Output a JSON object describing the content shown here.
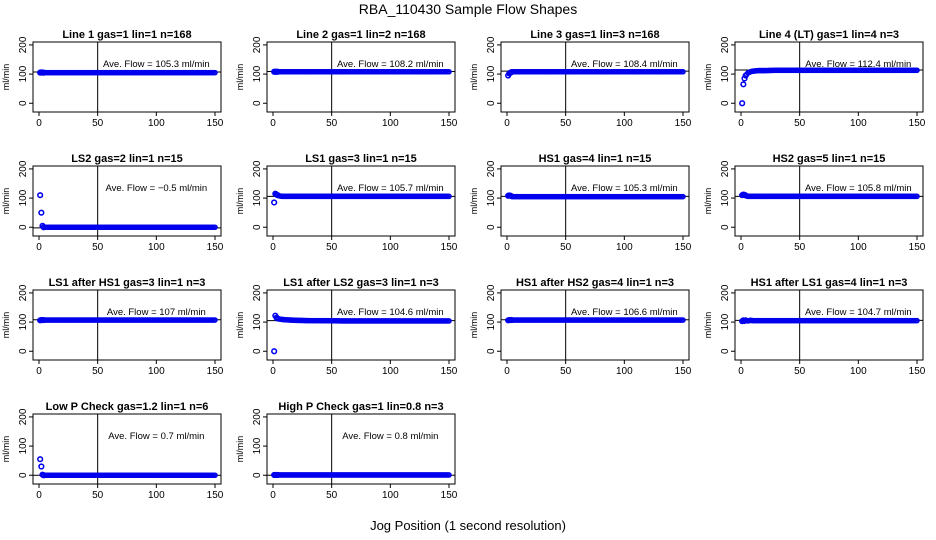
{
  "figure": {
    "title": "RBA_110430  Sample Flow Shapes",
    "xlabel": "Jog Position (1 second resolution)",
    "ylabel": "ml/min",
    "point_color": "#0000ee",
    "xticks": [
      "0",
      "50",
      "100",
      "150"
    ],
    "yticks": [
      "0",
      "100",
      "200"
    ]
  },
  "chart_data": [
    {
      "type": "scatter",
      "title": "Line 1 gas=1 lin=1 n=168",
      "annotation": "Ave. Flow = 105.3  ml/min",
      "xlim": [
        0,
        150
      ],
      "ylim": [
        -30,
        210
      ],
      "xticks": [
        0,
        50,
        100,
        150
      ],
      "yticks": [
        0,
        100,
        200
      ],
      "vline_x": 50,
      "hline_y": 107,
      "x": [
        1,
        2,
        3,
        4,
        5,
        6,
        8,
        10,
        15,
        20,
        30,
        40,
        60,
        80,
        100,
        120,
        140,
        150
      ],
      "y": [
        105,
        106,
        105,
        105,
        105,
        105,
        105,
        105,
        105,
        105,
        105,
        105,
        105,
        105,
        105,
        105,
        105,
        105
      ]
    },
    {
      "type": "scatter",
      "title": "Line 2 gas=1 lin=2 n=168",
      "annotation": "Ave. Flow = 108.2  ml/min",
      "xlim": [
        0,
        150
      ],
      "ylim": [
        -30,
        210
      ],
      "xticks": [
        0,
        50,
        100,
        150
      ],
      "yticks": [
        0,
        100,
        200
      ],
      "vline_x": 50,
      "hline_y": 109,
      "x": [
        1,
        2,
        3,
        4,
        5,
        6,
        8,
        10,
        15,
        20,
        30,
        40,
        60,
        80,
        100,
        120,
        140,
        150
      ],
      "y": [
        108,
        108,
        108,
        108,
        108,
        108,
        108,
        108,
        108,
        108,
        108,
        108,
        108,
        108,
        108,
        108,
        108,
        108
      ]
    },
    {
      "type": "scatter",
      "title": "Line 3 gas=1 lin=3 n=168",
      "annotation": "Ave. Flow = 108.4  ml/min",
      "xlim": [
        0,
        150
      ],
      "ylim": [
        -30,
        210
      ],
      "xticks": [
        0,
        50,
        100,
        150
      ],
      "yticks": [
        0,
        100,
        200
      ],
      "vline_x": 50,
      "hline_y": 110,
      "x": [
        1,
        2,
        3,
        4,
        5,
        6,
        8,
        10,
        15,
        20,
        30,
        40,
        60,
        80,
        100,
        120,
        140,
        150
      ],
      "y": [
        95,
        102,
        105,
        107,
        108,
        108,
        108,
        108,
        108,
        108,
        108,
        108,
        108,
        108,
        108,
        108,
        108,
        108
      ]
    },
    {
      "type": "scatter",
      "title": "Line 4 (LT) gas=1 lin=4 n=3",
      "annotation": "Ave. Flow = 112.4  ml/min",
      "xlim": [
        0,
        150
      ],
      "ylim": [
        -30,
        210
      ],
      "xticks": [
        0,
        50,
        100,
        150
      ],
      "yticks": [
        0,
        100,
        200
      ],
      "vline_x": 50,
      "hline_y": 114,
      "x": [
        1,
        2,
        3,
        4,
        5,
        6,
        8,
        10,
        15,
        20,
        30,
        40,
        60,
        80,
        100,
        120,
        140,
        150
      ],
      "y": [
        0,
        65,
        85,
        95,
        100,
        104,
        108,
        110,
        112,
        112,
        113,
        113,
        113,
        113,
        113,
        113,
        113,
        113
      ]
    },
    {
      "type": "scatter",
      "title": "LS2 gas=2 lin=1 n=15",
      "annotation": "Ave. Flow = −0.5  ml/min",
      "xlim": [
        0,
        150
      ],
      "ylim": [
        -30,
        210
      ],
      "xticks": [
        0,
        50,
        100,
        150
      ],
      "yticks": [
        0,
        100,
        200
      ],
      "vline_x": 50,
      "hline_y": -2,
      "x": [
        1,
        2,
        3,
        4,
        5,
        6,
        8,
        10,
        15,
        20,
        30,
        40,
        60,
        80,
        100,
        120,
        140,
        150
      ],
      "y": [
        110,
        50,
        5,
        0,
        0,
        0,
        0,
        0,
        0,
        0,
        0,
        0,
        0,
        0,
        0,
        0,
        0,
        0
      ]
    },
    {
      "type": "scatter",
      "title": "LS1 gas=3 lin=1 n=15",
      "annotation": "Ave. Flow = 105.7  ml/min",
      "xlim": [
        0,
        150
      ],
      "ylim": [
        -30,
        210
      ],
      "xticks": [
        0,
        50,
        100,
        150
      ],
      "yticks": [
        0,
        100,
        200
      ],
      "vline_x": 50,
      "hline_y": 106,
      "x": [
        1,
        2,
        3,
        4,
        5,
        6,
        8,
        10,
        15,
        20,
        30,
        40,
        60,
        80,
        100,
        120,
        140,
        150
      ],
      "y": [
        85,
        115,
        112,
        110,
        108,
        107,
        106,
        106,
        106,
        106,
        106,
        106,
        106,
        106,
        106,
        106,
        106,
        106
      ]
    },
    {
      "type": "scatter",
      "title": "HS1 gas=4 lin=1 n=15",
      "annotation": "Ave. Flow = 105.3  ml/min",
      "xlim": [
        0,
        150
      ],
      "ylim": [
        -30,
        210
      ],
      "xticks": [
        0,
        50,
        100,
        150
      ],
      "yticks": [
        0,
        100,
        200
      ],
      "vline_x": 50,
      "hline_y": 106,
      "x": [
        1,
        2,
        3,
        4,
        5,
        6,
        8,
        10,
        15,
        20,
        30,
        40,
        60,
        80,
        100,
        120,
        140,
        150
      ],
      "y": [
        108,
        109,
        108,
        106,
        105,
        105,
        105,
        105,
        105,
        105,
        105,
        105,
        105,
        105,
        105,
        105,
        105,
        105
      ]
    },
    {
      "type": "scatter",
      "title": "HS2 gas=5 lin=1 n=15",
      "annotation": "Ave. Flow = 105.8  ml/min",
      "xlim": [
        0,
        150
      ],
      "ylim": [
        -30,
        210
      ],
      "xticks": [
        0,
        50,
        100,
        150
      ],
      "yticks": [
        0,
        100,
        200
      ],
      "vline_x": 50,
      "hline_y": 106,
      "x": [
        1,
        2,
        3,
        4,
        5,
        6,
        8,
        10,
        15,
        20,
        30,
        40,
        60,
        80,
        100,
        120,
        140,
        150
      ],
      "y": [
        110,
        112,
        111,
        109,
        107,
        106,
        106,
        106,
        106,
        106,
        106,
        106,
        106,
        106,
        106,
        106,
        106,
        106
      ]
    },
    {
      "type": "scatter",
      "title": "LS1 after HS1 gas=3 lin=1 n=3",
      "annotation": "Ave. Flow = 107  ml/min",
      "xlim": [
        0,
        150
      ],
      "ylim": [
        -30,
        210
      ],
      "xticks": [
        0,
        50,
        100,
        150
      ],
      "yticks": [
        0,
        100,
        200
      ],
      "vline_x": 50,
      "hline_y": 108,
      "x": [
        1,
        2,
        3,
        4,
        5,
        6,
        8,
        10,
        15,
        20,
        30,
        40,
        60,
        80,
        100,
        120,
        140,
        150
      ],
      "y": [
        106,
        107,
        107,
        107,
        107,
        107,
        107,
        107,
        107,
        107,
        107,
        107,
        107,
        107,
        107,
        107,
        107,
        107
      ]
    },
    {
      "type": "scatter",
      "title": "LS1 after LS2 gas=3 lin=1 n=3",
      "annotation": "Ave. Flow = 104.6  ml/min",
      "xlim": [
        0,
        150
      ],
      "ylim": [
        -30,
        210
      ],
      "xticks": [
        0,
        50,
        100,
        150
      ],
      "yticks": [
        0,
        100,
        200
      ],
      "vline_x": 50,
      "hline_y": 105,
      "x": [
        1,
        2,
        3,
        4,
        5,
        6,
        8,
        10,
        15,
        20,
        30,
        40,
        60,
        80,
        100,
        120,
        140,
        150
      ],
      "y": [
        0,
        122,
        115,
        112,
        111,
        110,
        109,
        108,
        107,
        106,
        105,
        105,
        104,
        104,
        104,
        104,
        104,
        104
      ]
    },
    {
      "type": "scatter",
      "title": "HS1 after HS2 gas=4 lin=1 n=3",
      "annotation": "Ave. Flow = 106.6  ml/min",
      "xlim": [
        0,
        150
      ],
      "ylim": [
        -30,
        210
      ],
      "xticks": [
        0,
        50,
        100,
        150
      ],
      "yticks": [
        0,
        100,
        200
      ],
      "vline_x": 50,
      "hline_y": 108,
      "x": [
        1,
        2,
        3,
        4,
        5,
        6,
        8,
        10,
        15,
        20,
        30,
        40,
        60,
        80,
        100,
        120,
        140,
        150
      ],
      "y": [
        106,
        107,
        107,
        107,
        107,
        107,
        107,
        107,
        107,
        107,
        107,
        107,
        107,
        107,
        107,
        107,
        107,
        107
      ]
    },
    {
      "type": "scatter",
      "title": "HS1 after LS1 gas=4 lin=1 n=3",
      "annotation": "Ave. Flow = 104.7  ml/min",
      "xlim": [
        0,
        150
      ],
      "ylim": [
        -30,
        210
      ],
      "xticks": [
        0,
        50,
        100,
        150
      ],
      "yticks": [
        0,
        100,
        200
      ],
      "vline_x": 50,
      "hline_y": 106,
      "x": [
        1,
        2,
        3,
        4,
        5,
        6,
        8,
        10,
        15,
        20,
        30,
        40,
        60,
        80,
        100,
        120,
        140,
        150
      ],
      "y": [
        103,
        106,
        104,
        106,
        105,
        104,
        106,
        105,
        105,
        105,
        105,
        105,
        105,
        105,
        105,
        105,
        105,
        105
      ]
    },
    {
      "type": "scatter",
      "title": "Low P Check gas=1.2 lin=1 n=6",
      "annotation": "Ave. Flow = 0.7  ml/min",
      "xlim": [
        0,
        150
      ],
      "ylim": [
        -30,
        210
      ],
      "xticks": [
        0,
        50,
        100,
        150
      ],
      "yticks": [
        0,
        100,
        200
      ],
      "vline_x": 50,
      "hline_y": 0,
      "x": [
        1,
        2,
        3,
        4,
        5,
        6,
        8,
        10,
        15,
        20,
        30,
        40,
        60,
        80,
        100,
        120,
        140,
        150
      ],
      "y": [
        55,
        30,
        2,
        0,
        0,
        0,
        0,
        0,
        0,
        0,
        0,
        0,
        0,
        0,
        0,
        0,
        0,
        0
      ]
    },
    {
      "type": "scatter",
      "title": "High P Check gas=1 lin=0.8 n=3",
      "annotation": "Ave. Flow = 0.8  ml/min",
      "xlim": [
        0,
        150
      ],
      "ylim": [
        -30,
        210
      ],
      "xticks": [
        0,
        50,
        100,
        150
      ],
      "yticks": [
        0,
        100,
        200
      ],
      "vline_x": 50,
      "hline_y": 0,
      "x": [
        1,
        2,
        3,
        4,
        5,
        6,
        8,
        10,
        15,
        20,
        30,
        40,
        60,
        80,
        100,
        120,
        140,
        150
      ],
      "y": [
        1,
        1,
        1,
        1,
        1,
        1,
        1,
        1,
        1,
        1,
        1,
        1,
        1,
        1,
        1,
        1,
        1,
        1
      ]
    }
  ]
}
